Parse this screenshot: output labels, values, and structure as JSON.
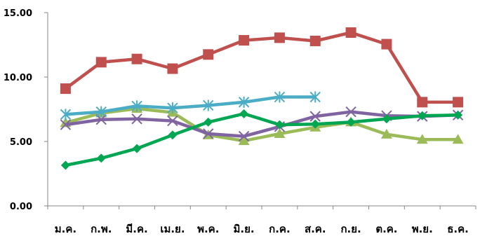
{
  "chart_data": {
    "type": "line",
    "title": "",
    "xlabel": "",
    "ylabel": "",
    "ylim": [
      0,
      15
    ],
    "yticks": [
      "0.00",
      "5.00",
      "10.00",
      "15.00"
    ],
    "grid": false,
    "categories": [
      "ม.ค.",
      "ก.พ.",
      "มี.ค.",
      "เม.ย.",
      "พ.ค.",
      "มิ.ย.",
      "ก.ค.",
      "ส.ค.",
      "ก.ย.",
      "ต.ค.",
      "พ.ย.",
      "ธ.ค."
    ],
    "series": [
      {
        "color": "#C0504D",
        "marker": "square",
        "values": [
          9.1,
          11.15,
          11.4,
          10.65,
          11.75,
          12.85,
          13.05,
          12.8,
          13.45,
          12.55,
          8.05,
          8.05
        ]
      },
      {
        "color": "#4BACC6",
        "marker": "asterisk",
        "values": [
          7.1,
          7.3,
          7.75,
          7.6,
          7.8,
          8.05,
          8.45,
          8.45,
          null,
          null,
          null,
          null
        ]
      },
      {
        "color": "#00A651",
        "marker": "diamond",
        "values": [
          3.15,
          3.7,
          4.45,
          5.5,
          6.5,
          7.15,
          6.3,
          6.35,
          6.5,
          6.75,
          7.0,
          7.05
        ]
      },
      {
        "color": "#9BBB59",
        "marker": "triangle",
        "values": [
          6.45,
          7.2,
          7.55,
          7.25,
          5.5,
          5.05,
          5.6,
          6.1,
          6.5,
          5.55,
          5.15,
          5.15
        ]
      },
      {
        "color": "#8064A2",
        "marker": "x",
        "values": [
          6.3,
          6.7,
          6.75,
          6.6,
          5.6,
          5.4,
          6.15,
          6.95,
          7.3,
          7.0,
          6.95,
          7.05
        ]
      }
    ]
  }
}
